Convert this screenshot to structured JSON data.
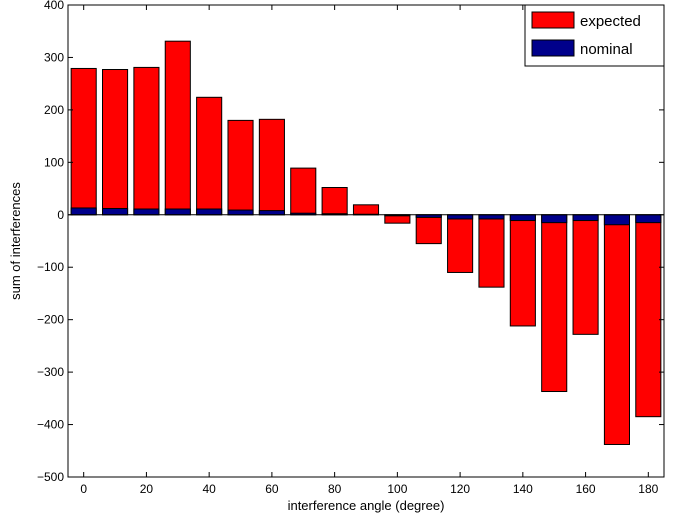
{
  "chart_data": {
    "type": "bar",
    "title": "",
    "xlabel": "interference angle (degree)",
    "ylabel": "sum of interferences",
    "xlim": [
      -5,
      185
    ],
    "ylim": [
      -500,
      400
    ],
    "x_ticks": [
      0,
      20,
      40,
      60,
      80,
      100,
      120,
      140,
      160,
      180
    ],
    "y_ticks": [
      -500,
      -400,
      -300,
      -200,
      -100,
      0,
      100,
      200,
      300,
      400
    ],
    "x_tick_labels": [
      "0",
      "20",
      "40",
      "60",
      "80",
      "100",
      "120",
      "140",
      "160",
      "180"
    ],
    "y_tick_labels": [
      "−500",
      "−400",
      "−300",
      "−200",
      "−100",
      "0",
      "100",
      "200",
      "300",
      "400"
    ],
    "grid": false,
    "legend_position": "top-right",
    "x": [
      0,
      10,
      20,
      30,
      40,
      50,
      60,
      70,
      80,
      90,
      100,
      110,
      120,
      130,
      140,
      150,
      160,
      170,
      180
    ],
    "series": [
      {
        "name": "expected",
        "color": "#ff0000",
        "values": [
          279,
          277,
          281,
          331,
          224,
          180,
          182,
          89,
          52,
          19,
          -16,
          -55,
          -110,
          -138,
          -212,
          -337,
          -228,
          -438,
          -385
        ]
      },
      {
        "name": "nominal",
        "color": "#00008b",
        "values": [
          13,
          12,
          11,
          11,
          11,
          9,
          8,
          3,
          2,
          1,
          -2,
          -5,
          -8,
          -8,
          -11,
          -15,
          -11,
          -19,
          -15
        ]
      }
    ]
  }
}
